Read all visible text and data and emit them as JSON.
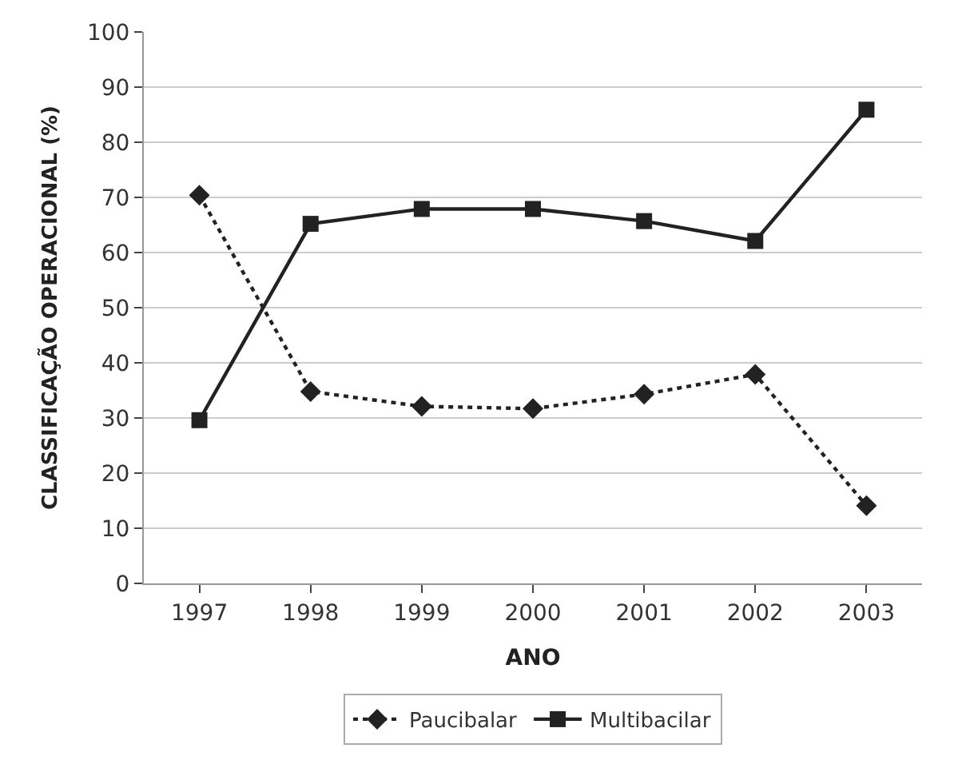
{
  "chart_data": {
    "type": "line",
    "xlabel": "ANO",
    "ylabel": "CLASSIFICAÇÃO OPERACIONAL (%)",
    "categories": [
      "1997",
      "1998",
      "1999",
      "2000",
      "2001",
      "2002",
      "2003"
    ],
    "series": [
      {
        "name": "Paucibalar",
        "color": "#222222",
        "marker": "diamond",
        "line_style": "dotted",
        "values": [
          70.4,
          34.8,
          32.1,
          31.7,
          34.3,
          37.9,
          14.1
        ]
      },
      {
        "name": "Multibacilar",
        "color": "#222222",
        "marker": "square",
        "line_style": "solid",
        "values": [
          29.6,
          65.2,
          67.9,
          67.9,
          65.7,
          62.1,
          85.9
        ]
      }
    ],
    "ylim": [
      0,
      100
    ],
    "yticks": [
      0,
      10,
      20,
      30,
      40,
      50,
      60,
      70,
      80,
      90,
      100
    ],
    "grid": "y",
    "legend": "bottom"
  }
}
